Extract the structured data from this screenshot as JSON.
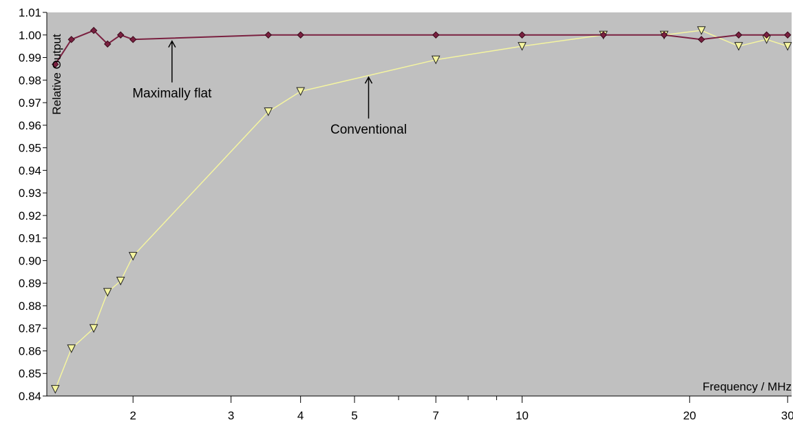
{
  "chart_data": {
    "type": "line",
    "ylabel": "Relative Output",
    "xlabel": "Frequency / MHz",
    "xscale": "log",
    "xlim": [
      1.4,
      30.5
    ],
    "ylim": [
      0.84,
      1.01
    ],
    "yticks": [
      0.84,
      0.85,
      0.86,
      0.87,
      0.88,
      0.89,
      0.9,
      0.91,
      0.92,
      0.93,
      0.94,
      0.95,
      0.96,
      0.97,
      0.98,
      0.99,
      1.0,
      1.01
    ],
    "ytick_labels": [
      "0.84",
      "0.85",
      "0.86",
      "0.87",
      "0.88",
      "0.89",
      "0.90",
      "0.91",
      "0.92",
      "0.93",
      "0.94",
      "0.95",
      "0.96",
      "0.97",
      "0.98",
      "0.99",
      "1.00",
      "1.01"
    ],
    "xticks_labeled": [
      2,
      3,
      4,
      5,
      7,
      10,
      20,
      30
    ],
    "xtick_labels": [
      "2",
      "3",
      "4",
      "5",
      "7",
      "10",
      "20",
      "30"
    ],
    "xticks_minor": [
      6,
      8,
      9
    ],
    "grid": false,
    "plot_background": "#c0c0c0",
    "series": [
      {
        "key": "maximally_flat",
        "color": "#7a2040",
        "marker": "diamond",
        "x": [
          1.45,
          1.55,
          1.7,
          1.8,
          1.9,
          2.0,
          3.5,
          4.0,
          7.0,
          10.0,
          14.0,
          18.0,
          21.0,
          24.5,
          27.5,
          30.0
        ],
        "y": [
          0.987,
          0.998,
          1.002,
          0.996,
          1.0,
          0.998,
          1.0,
          1.0,
          1.0,
          1.0,
          1.0,
          1.0,
          0.998,
          1.0,
          1.0,
          1.0
        ]
      },
      {
        "key": "conventional",
        "color": "#f5f5a0",
        "marker": "triangle-down",
        "x": [
          1.45,
          1.55,
          1.7,
          1.8,
          1.9,
          2.0,
          3.5,
          4.0,
          7.0,
          10.0,
          14.0,
          18.0,
          21.0,
          24.5,
          27.5,
          30.0
        ],
        "y": [
          0.843,
          0.861,
          0.87,
          0.886,
          0.891,
          0.902,
          0.966,
          0.975,
          0.989,
          0.995,
          1.0,
          1.0,
          1.002,
          0.995,
          0.998,
          0.995
        ]
      }
    ],
    "annotations": [
      {
        "text": "Maximally flat",
        "target_series": "maximally_flat",
        "x": 2.35,
        "y": 0.9985
      },
      {
        "text": "Conventional",
        "target_series": "conventional",
        "x": 5.3,
        "y": 0.9825
      }
    ]
  }
}
